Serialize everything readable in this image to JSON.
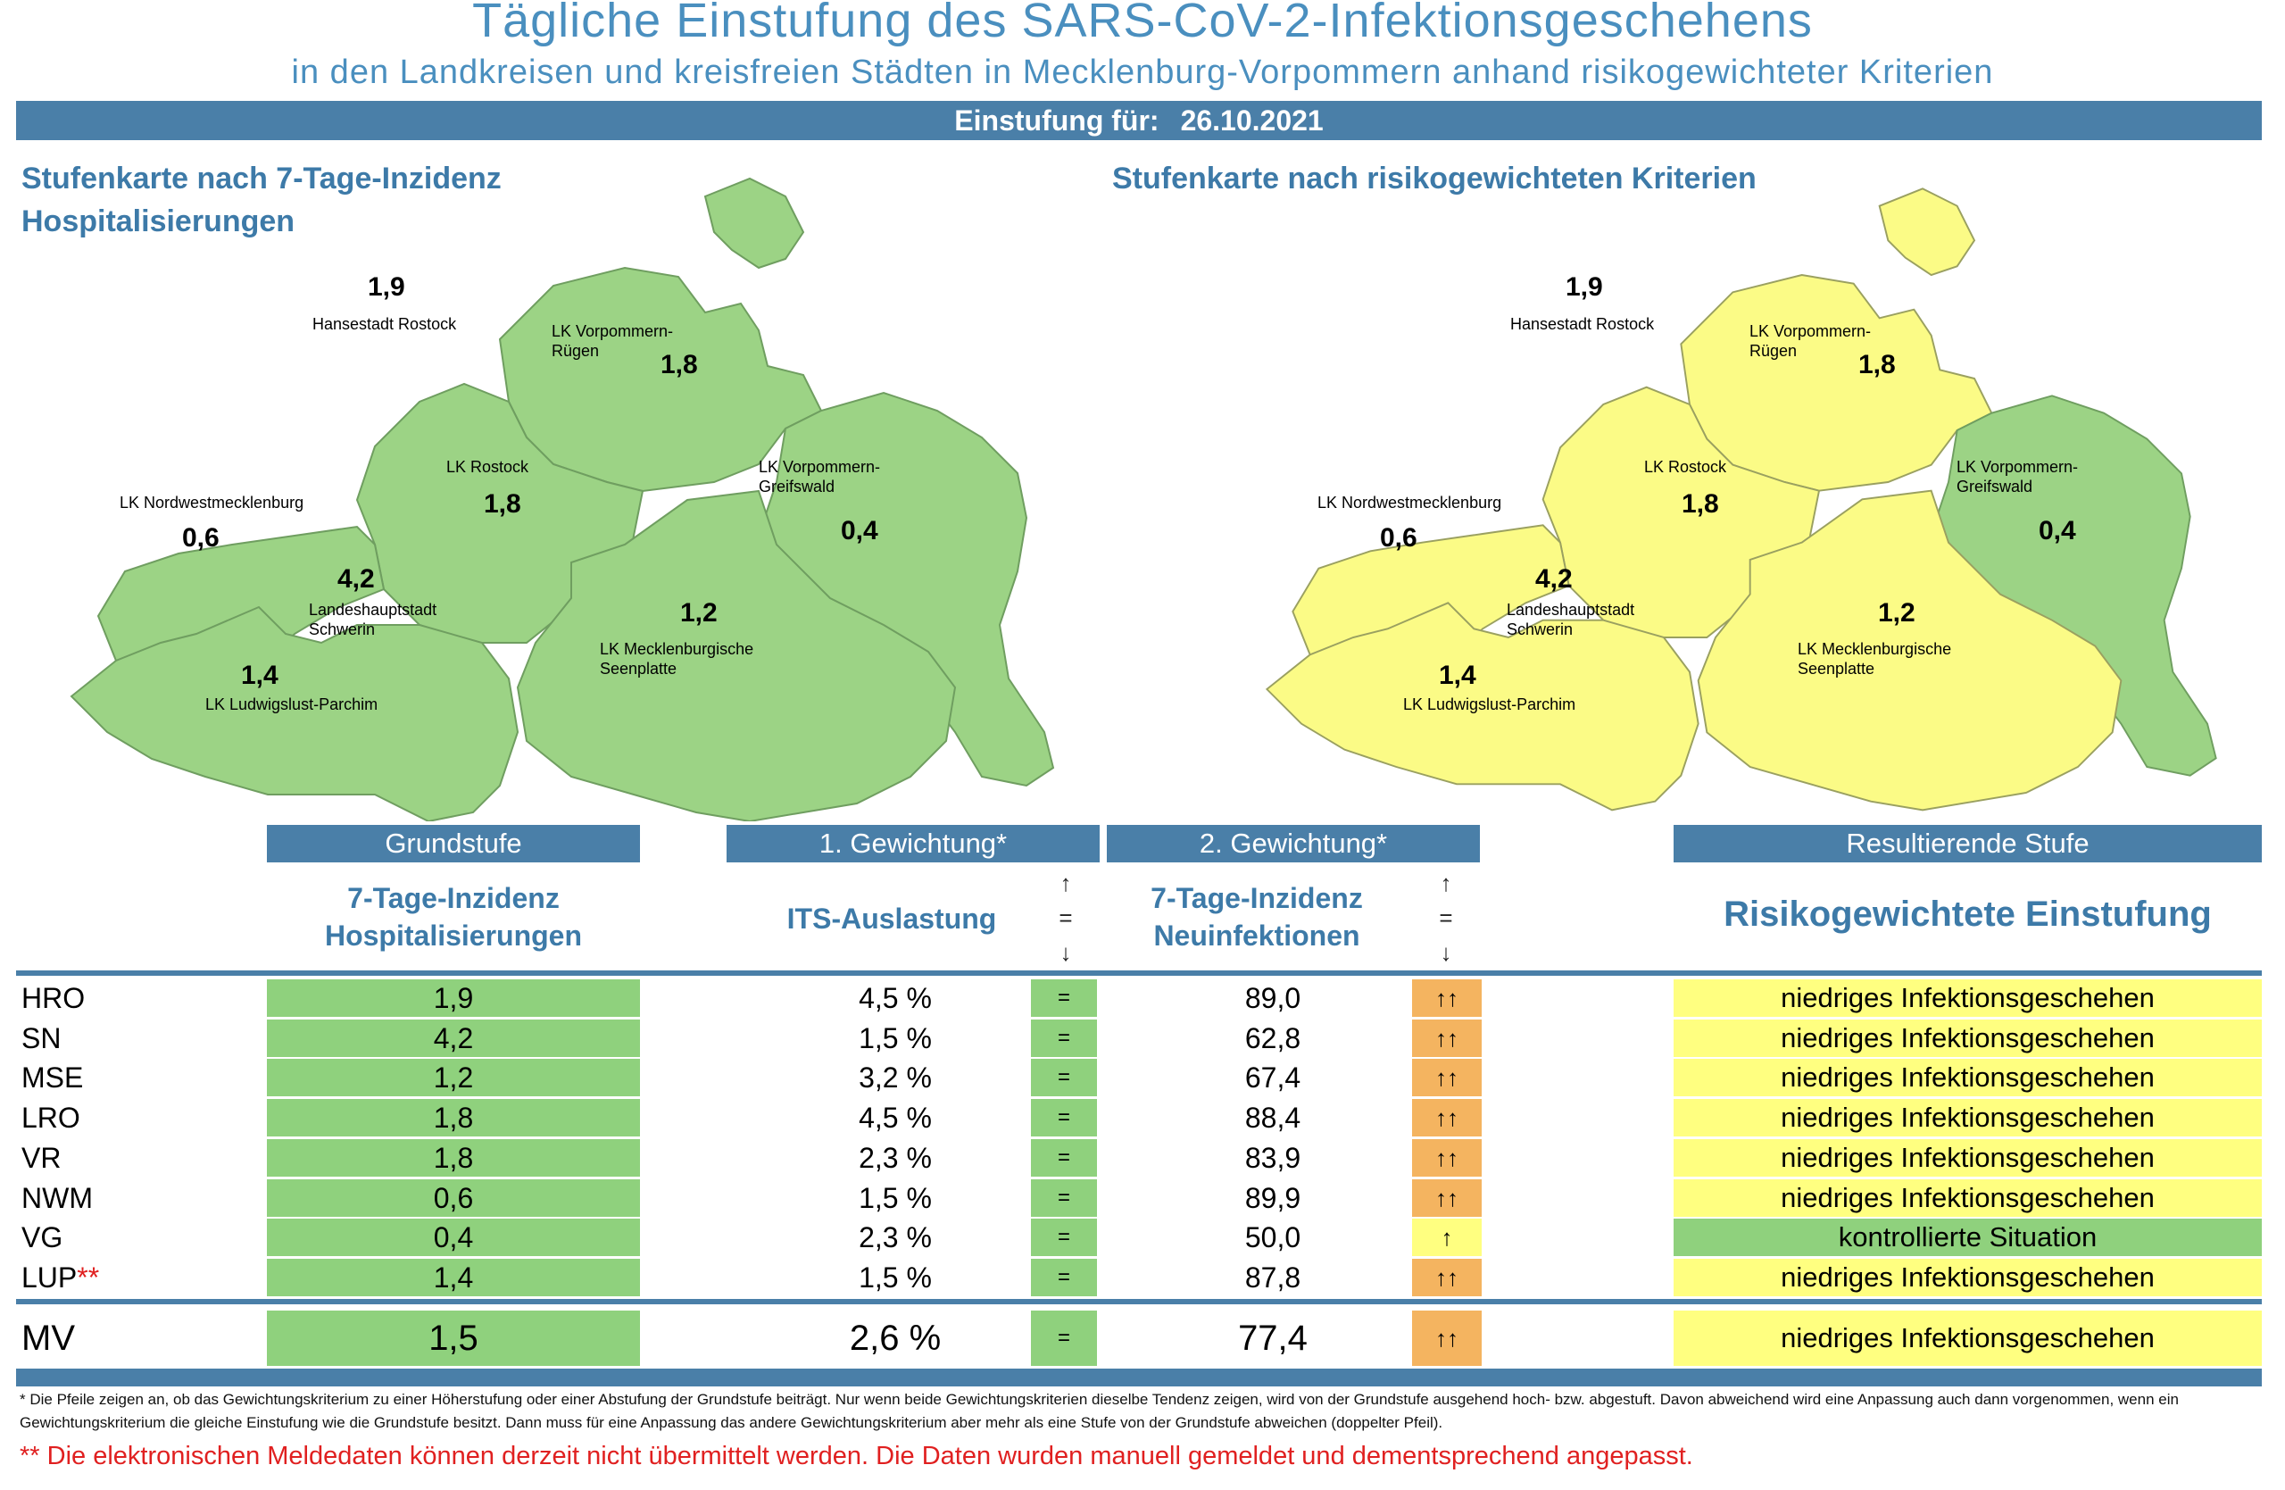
{
  "title": "Tägliche Einstufung des SARS-CoV-2-Infektionsgeschehens",
  "subtitle": "in den Landkreisen und kreisfreien Städten in Mecklenburg-Vorpommern anhand risikogewichteter Kriterien",
  "date_label": "Einstufung für:",
  "date_value": "26.10.2021",
  "map_left": {
    "title_line1": "Stufenkarte nach 7-Tage-Inzidenz",
    "title_line2": "Hospitalisierungen",
    "regions": {
      "hro": {
        "name": "Hansestadt Rostock",
        "value": "1,9"
      },
      "vr": {
        "name1": "LK Vorpommern-",
        "name2": "Rügen",
        "value": "1,8"
      },
      "lro": {
        "name": "LK Rostock",
        "value": "1,8"
      },
      "vg": {
        "name1": "LK Vorpommern-",
        "name2": "Greifswald",
        "value": "0,4"
      },
      "nwm": {
        "name": "LK Nordwestmecklenburg",
        "value": "0,6"
      },
      "sn": {
        "name1": "Landeshauptstadt",
        "name2": "Schwerin",
        "value": "4,2"
      },
      "mse": {
        "name1": "LK Mecklenburgische",
        "name2": "Seenplatte",
        "value": "1,2"
      },
      "lup": {
        "name": "LK Ludwigslust-Parchim",
        "value": "1,4"
      }
    }
  },
  "map_right": {
    "title": "Stufenkarte nach risikogewichteten Kriterien",
    "regions": {
      "hro": {
        "name": "Hansestadt Rostock",
        "value": "1,9"
      },
      "vr": {
        "name1": "LK Vorpommern-",
        "name2": "Rügen",
        "value": "1,8"
      },
      "lro": {
        "name": "LK Rostock",
        "value": "1,8"
      },
      "vg": {
        "name1": "LK Vorpommern-",
        "name2": "Greifswald",
        "value": "0,4"
      },
      "nwm": {
        "name": "LK Nordwestmecklenburg",
        "value": "0,6"
      },
      "sn": {
        "name1": "Landeshauptstadt",
        "name2": "Schwerin",
        "value": "4,2"
      },
      "mse": {
        "name1": "LK Mecklenburgische",
        "name2": "Seenplatte",
        "value": "1,2"
      },
      "lup": {
        "name": "LK Ludwigslust-Parchim",
        "value": "1,4"
      }
    }
  },
  "colors": {
    "green": "#8fd17d",
    "yellow": "#ffff80",
    "orange": "#f4b460",
    "blue_bar": "#4a7fa8",
    "title_blue": "#4a8fbf"
  },
  "table": {
    "headers": {
      "grundstufe": "Grundstufe",
      "gew1": "1. Gewichtung*",
      "gew2": "2. Gewichtung*",
      "result": "Resultierende Stufe"
    },
    "subheaders": {
      "grundstufe_line1": "7-Tage-Inzidenz",
      "grundstufe_line2": "Hospitalisierungen",
      "gew1": "ITS-Auslastung",
      "gew2_line1": "7-Tage-Inzidenz",
      "gew2_line2": "Neuinfektionen",
      "result": "Risikogewichtete Einstufung"
    },
    "arrow_legend": {
      "up": "↑",
      "eq": "=",
      "down": "↓"
    },
    "rows": [
      {
        "code": "HRO",
        "star": "",
        "inz": "1,9",
        "its": "4,5 %",
        "its_trend": "=",
        "neu": "89,0",
        "neu_trend": "↑↑",
        "trend_color": "orange",
        "result": "niedriges Infektionsgeschehen",
        "result_color": "yellow"
      },
      {
        "code": "SN",
        "star": "",
        "inz": "4,2",
        "its": "1,5 %",
        "its_trend": "=",
        "neu": "62,8",
        "neu_trend": "↑↑",
        "trend_color": "orange",
        "result": "niedriges Infektionsgeschehen",
        "result_color": "yellow"
      },
      {
        "code": "MSE",
        "star": "",
        "inz": "1,2",
        "its": "3,2 %",
        "its_trend": "=",
        "neu": "67,4",
        "neu_trend": "↑↑",
        "trend_color": "orange",
        "result": "niedriges Infektionsgeschehen",
        "result_color": "yellow"
      },
      {
        "code": "LRO",
        "star": "",
        "inz": "1,8",
        "its": "4,5 %",
        "its_trend": "=",
        "neu": "88,4",
        "neu_trend": "↑↑",
        "trend_color": "orange",
        "result": "niedriges Infektionsgeschehen",
        "result_color": "yellow"
      },
      {
        "code": "VR",
        "star": "",
        "inz": "1,8",
        "its": "2,3 %",
        "its_trend": "=",
        "neu": "83,9",
        "neu_trend": "↑↑",
        "trend_color": "orange",
        "result": "niedriges Infektionsgeschehen",
        "result_color": "yellow"
      },
      {
        "code": "NWM",
        "star": "",
        "inz": "0,6",
        "its": "1,5 %",
        "its_trend": "=",
        "neu": "89,9",
        "neu_trend": "↑↑",
        "trend_color": "orange",
        "result": "niedriges Infektionsgeschehen",
        "result_color": "yellow"
      },
      {
        "code": "VG",
        "star": "",
        "inz": "0,4",
        "its": "2,3 %",
        "its_trend": "=",
        "neu": "50,0",
        "neu_trend": "↑",
        "trend_color": "lightyellow",
        "result": "kontrollierte Situation",
        "result_color": "green"
      },
      {
        "code": "LUP",
        "star": "**",
        "inz": "1,4",
        "its": "1,5 %",
        "its_trend": "=",
        "neu": "87,8",
        "neu_trend": "↑↑",
        "trend_color": "orange",
        "result": "niedriges Infektionsgeschehen",
        "result_color": "yellow"
      }
    ],
    "total": {
      "code": "MV",
      "inz": "1,5",
      "its": "2,6 %",
      "its_trend": "=",
      "neu": "77,4",
      "neu_trend": "↑↑",
      "trend_color": "orange",
      "result": "niedriges Infektionsgeschehen",
      "result_color": "yellow"
    }
  },
  "footnote": "* Die Pfeile zeigen an, ob das Gewichtungskriterium zu einer Höherstufung oder einer Abstufung der Grundstufe beiträgt. Nur wenn beide Gewichtungskriterien dieselbe Tendenz zeigen, wird von der Grundstufe ausgehend hoch- bzw. abgestuft.  Davon abweichend wird eine Anpassung auch dann vorgenommen, wenn ein Gewichtungskriterium die gleiche Einstufung wie die Grundstufe besitzt. Dann muss für eine Anpassung das andere Gewichtungskriterium aber mehr als eine Stufe von der Grundstufe abweichen (doppelter Pfeil).",
  "red_note": "** Die elektronischen Meldedaten können derzeit nicht übermittelt werden. Die Daten wurden manuell gemeldet und dementsprechend angepasst."
}
